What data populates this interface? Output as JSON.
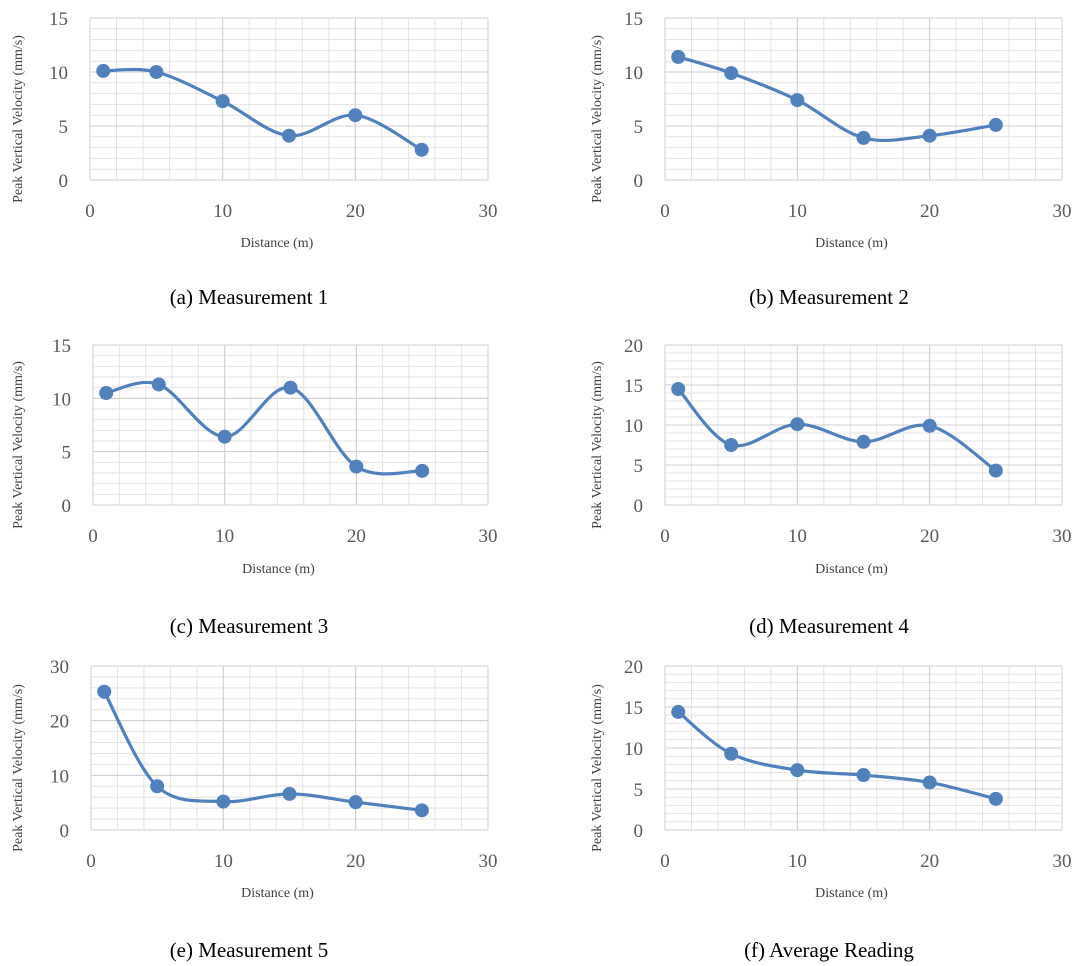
{
  "chart_data": [
    {
      "type": "line",
      "caption": "(a) Measurement 1",
      "xlabel": "Distance (m)",
      "ylabel": "Peak Vertical Velocity (mm/s)",
      "xlim": [
        0,
        30
      ],
      "ylim": [
        0,
        15
      ],
      "xticks": [
        0,
        10,
        20,
        30
      ],
      "yticks": [
        0,
        5,
        10,
        15
      ],
      "smooth": true,
      "grid": true,
      "series": [
        {
          "x": [
            1,
            5,
            10,
            15,
            20,
            25
          ],
          "y": [
            10.1,
            10.0,
            7.3,
            4.1,
            6.0,
            2.8
          ]
        }
      ]
    },
    {
      "type": "line",
      "caption": "(b) Measurement 2",
      "xlabel": "Distance (m)",
      "ylabel": "Peak Vertical Velocity (mm/s)",
      "xlim": [
        0,
        30
      ],
      "ylim": [
        0,
        15
      ],
      "xticks": [
        0,
        10,
        20,
        30
      ],
      "yticks": [
        0,
        5,
        10,
        15
      ],
      "smooth": true,
      "grid": true,
      "series": [
        {
          "x": [
            1,
            5,
            10,
            15,
            20,
            25
          ],
          "y": [
            11.4,
            9.9,
            7.4,
            3.9,
            4.1,
            5.1
          ]
        }
      ]
    },
    {
      "type": "line",
      "caption": "(c) Measurement 3",
      "xlabel": "Distance (m)",
      "ylabel": "Peak Vertical Velocity (mm/s)",
      "xlim": [
        0,
        30
      ],
      "ylim": [
        0,
        15
      ],
      "xticks": [
        0,
        10,
        20,
        30
      ],
      "yticks": [
        0,
        5,
        10,
        15
      ],
      "smooth": true,
      "grid": true,
      "series": [
        {
          "x": [
            1,
            5,
            10,
            15,
            20,
            25
          ],
          "y": [
            10.5,
            11.3,
            6.4,
            11.0,
            3.6,
            3.2
          ]
        }
      ]
    },
    {
      "type": "line",
      "caption": "(d) Measurement 4",
      "xlabel": "Distance (m)",
      "ylabel": "Peak Vertical Velocity (mm/s)",
      "xlim": [
        0,
        30
      ],
      "ylim": [
        0,
        20
      ],
      "xticks": [
        0,
        10,
        20,
        30
      ],
      "yticks": [
        0,
        5,
        10,
        15,
        20
      ],
      "smooth": true,
      "grid": true,
      "series": [
        {
          "x": [
            1,
            5,
            10,
            15,
            20,
            25
          ],
          "y": [
            14.5,
            7.5,
            10.1,
            7.9,
            9.9,
            4.3
          ]
        }
      ]
    },
    {
      "type": "line",
      "caption": "(e) Measurement 5",
      "xlabel": "Distance (m)",
      "ylabel": "Peak Vertical Velocity (mm/s)",
      "xlim": [
        0,
        30
      ],
      "ylim": [
        0,
        30
      ],
      "xticks": [
        0,
        10,
        20,
        30
      ],
      "yticks": [
        0,
        10,
        20,
        30
      ],
      "smooth": true,
      "grid": true,
      "series": [
        {
          "x": [
            1,
            5,
            10,
            15,
            20,
            25
          ],
          "y": [
            25.3,
            8.0,
            5.2,
            6.6,
            5.1,
            3.6
          ]
        }
      ]
    },
    {
      "type": "line",
      "caption": "(f) Average Reading",
      "xlabel": "Distance (m)",
      "ylabel": "Peak Vertical Velocity (mm/s)",
      "xlim": [
        0,
        30
      ],
      "ylim": [
        0,
        20
      ],
      "xticks": [
        0,
        10,
        20,
        30
      ],
      "yticks": [
        0,
        5,
        10,
        15,
        20
      ],
      "smooth": true,
      "grid": true,
      "series": [
        {
          "x": [
            1,
            5,
            10,
            15,
            20,
            25
          ],
          "y": [
            14.4,
            9.3,
            7.3,
            6.7,
            5.8,
            3.8
          ]
        }
      ]
    }
  ],
  "colors": {
    "series": "#4f81bd",
    "grid": "#e3e3e3",
    "tick_label": "#595959",
    "axis_title": "#404040",
    "caption": "#000000"
  }
}
